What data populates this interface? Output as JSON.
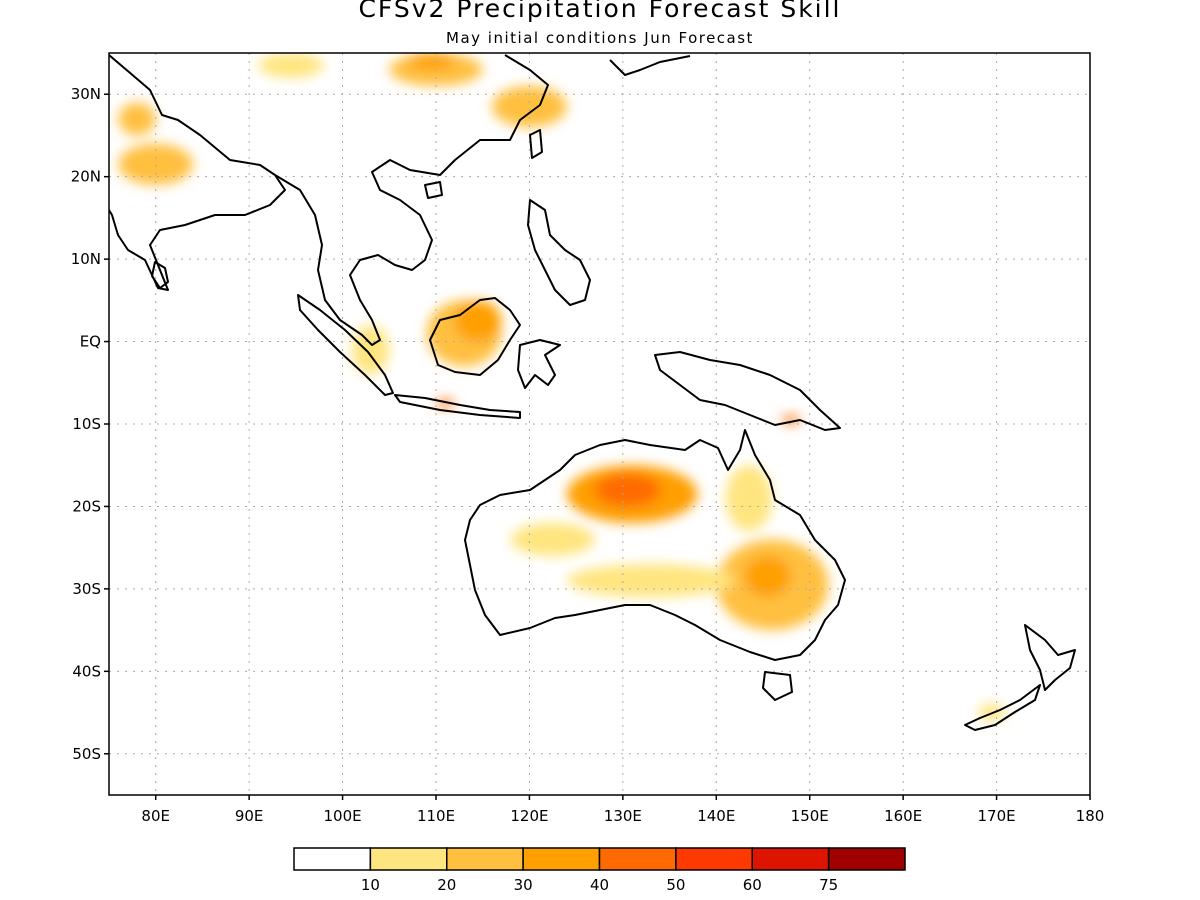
{
  "title": "CFSv2 Precipitation Forecast Skill",
  "subtitle": "May initial conditions  Jun Forecast",
  "map": {
    "lon_range": [
      75,
      180
    ],
    "lat_range": [
      -55,
      35
    ],
    "grid": true,
    "lat_ticks": [
      {
        "lat": 30,
        "label": "30N"
      },
      {
        "lat": 20,
        "label": "20N"
      },
      {
        "lat": 10,
        "label": "10N"
      },
      {
        "lat": 0,
        "label": "EQ"
      },
      {
        "lat": -10,
        "label": "10S"
      },
      {
        "lat": -20,
        "label": "20S"
      },
      {
        "lat": -30,
        "label": "30S"
      },
      {
        "lat": -40,
        "label": "40S"
      },
      {
        "lat": -50,
        "label": "50S"
      }
    ],
    "lon_ticks": [
      {
        "lon": 80,
        "label": "80E"
      },
      {
        "lon": 90,
        "label": "90E"
      },
      {
        "lon": 100,
        "label": "100E"
      },
      {
        "lon": 110,
        "label": "110E"
      },
      {
        "lon": 120,
        "label": "120E"
      },
      {
        "lon": 130,
        "label": "130E"
      },
      {
        "lon": 140,
        "label": "140E"
      },
      {
        "lon": 150,
        "label": "150E"
      },
      {
        "lon": 160,
        "label": "160E"
      },
      {
        "lon": 170,
        "label": "170E"
      },
      {
        "lon": 180,
        "label": "180"
      }
    ]
  },
  "legend": {
    "colors": [
      "#ffffff",
      "#ffe57f",
      "#ffc03f",
      "#ff9f00",
      "#ff6a00",
      "#ff3a00",
      "#dd1500",
      "#a00000"
    ],
    "labels": [
      "10",
      "20",
      "30",
      "40",
      "50",
      "60",
      "75"
    ]
  },
  "skill_regions": [
    {
      "region": "northern Australia",
      "lon": [
        124,
        138
      ],
      "lat": [
        -22,
        -15
      ],
      "level": 3
    },
    {
      "region": "northern Australia core",
      "lon": [
        127,
        134
      ],
      "lat": [
        -20,
        -16
      ],
      "level": 4
    },
    {
      "region": "eastern Australia",
      "lon": [
        140,
        152
      ],
      "lat": [
        -35,
        -24
      ],
      "level": 2
    },
    {
      "region": "eastern Australia core",
      "lon": [
        143,
        148
      ],
      "lat": [
        -31,
        -26
      ],
      "level": 3
    },
    {
      "region": "south Australia band",
      "lon": [
        124,
        142
      ],
      "lat": [
        -31,
        -27
      ],
      "level": 1
    },
    {
      "region": "western Australia",
      "lon": [
        118,
        127
      ],
      "lat": [
        -26,
        -22
      ],
      "level": 1
    },
    {
      "region": "Borneo",
      "lon": [
        109,
        117
      ],
      "lat": [
        -3,
        5
      ],
      "level": 2
    },
    {
      "region": "Borneo core",
      "lon": [
        112,
        117
      ],
      "lat": [
        0,
        5
      ],
      "level": 3
    },
    {
      "region": "Sumatra",
      "lon": [
        101,
        105
      ],
      "lat": [
        -4,
        2
      ],
      "level": 1
    },
    {
      "region": "Java",
      "lon": [
        110,
        112
      ],
      "lat": [
        -8,
        -7
      ],
      "level": 4
    },
    {
      "region": "New Guinea",
      "lon": [
        147,
        149
      ],
      "lat": [
        -10,
        -9
      ],
      "level": 4
    },
    {
      "region": "India",
      "lon": [
        76,
        84
      ],
      "lat": [
        19,
        24
      ],
      "level": 2
    },
    {
      "region": "India north",
      "lon": [
        76,
        80
      ],
      "lat": [
        25,
        29
      ],
      "level": 2
    },
    {
      "region": "China south",
      "lon": [
        116,
        124
      ],
      "lat": [
        26,
        31
      ],
      "level": 2
    },
    {
      "region": "China north",
      "lon": [
        105,
        115
      ],
      "lat": [
        31,
        35
      ],
      "level": 2
    },
    {
      "region": "China north core",
      "lon": [
        107,
        112
      ],
      "lat": [
        33,
        35
      ],
      "level": 3
    },
    {
      "region": "Tibet",
      "lon": [
        91,
        98
      ],
      "lat": [
        32,
        35
      ],
      "level": 1
    },
    {
      "region": "Queensland coast",
      "lon": [
        141,
        146
      ],
      "lat": [
        -23,
        -15
      ],
      "level": 1
    },
    {
      "region": "New Zealand",
      "lon": [
        168,
        171
      ],
      "lat": [
        -46,
        -44
      ],
      "level": 1
    }
  ]
}
